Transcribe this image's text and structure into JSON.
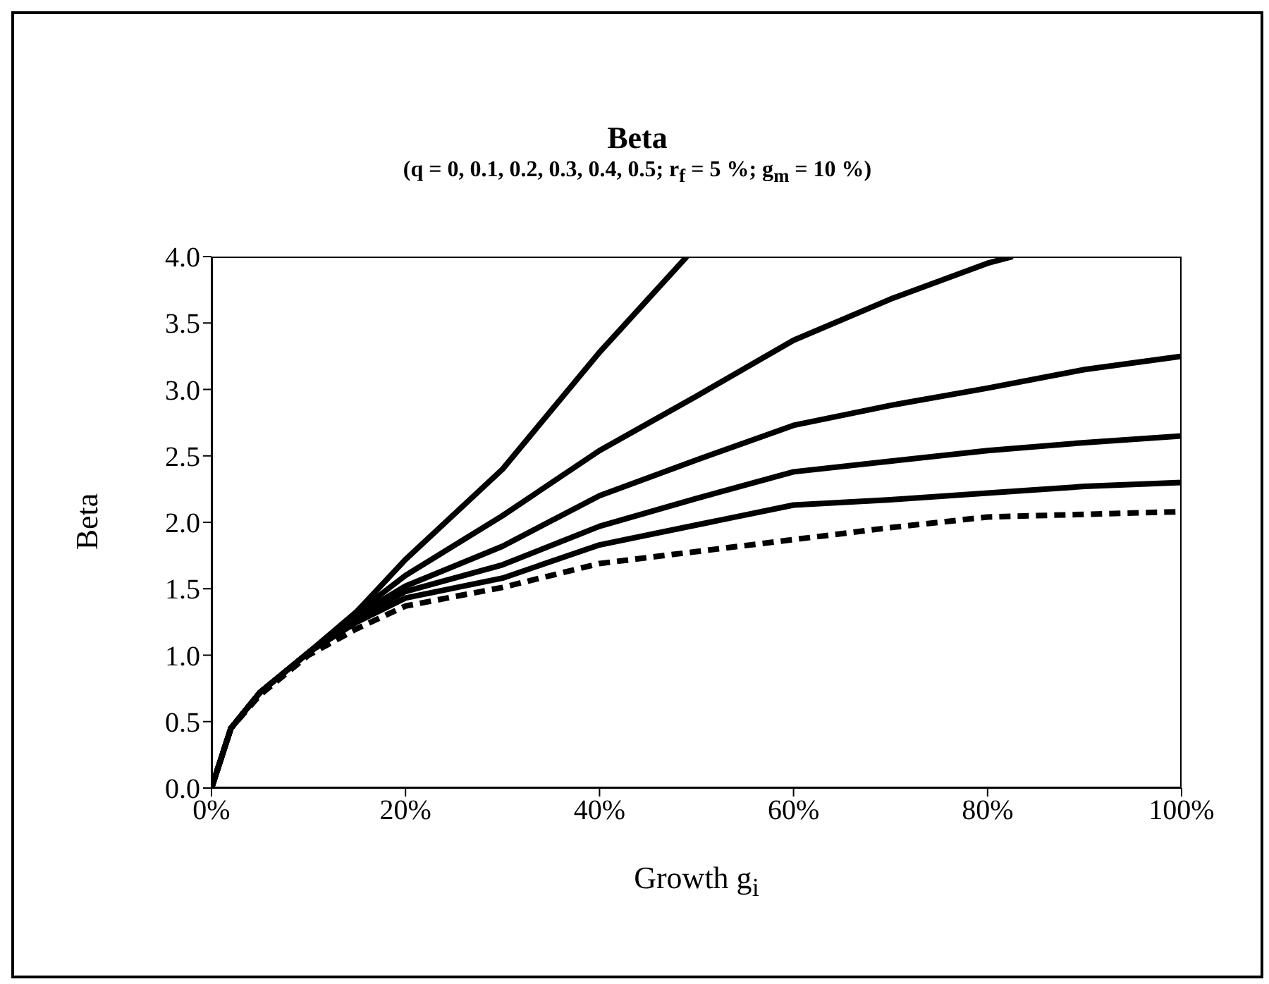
{
  "chart_data": {
    "type": "line",
    "title": "Beta",
    "subtitle": "(q = 0, 0.1, 0.2, 0.3, 0.4, 0.5; r$_{f}$ = 5 %; g$_{m}$ = 10 %)",
    "xlabel": "Growth g$_{i}$",
    "ylabel": "Beta",
    "xlim": [
      0,
      100
    ],
    "xticks": [
      {
        "value": 0,
        "label": "0%"
      },
      {
        "value": 20,
        "label": "20%"
      },
      {
        "value": 40,
        "label": "40%"
      },
      {
        "value": 60,
        "label": "60%"
      },
      {
        "value": 80,
        "label": "80%"
      },
      {
        "value": 100,
        "label": "100%"
      }
    ],
    "ylim": [
      0,
      4
    ],
    "yticks": [
      {
        "value": 0,
        "label": "0.0"
      },
      {
        "value": 0.5,
        "label": "0.5"
      },
      {
        "value": 1,
        "label": "1.0"
      },
      {
        "value": 1.5,
        "label": "1.5"
      },
      {
        "value": 2,
        "label": "2.0"
      },
      {
        "value": 2.5,
        "label": "2.5"
      },
      {
        "value": 3,
        "label": "3.0"
      },
      {
        "value": 3.5,
        "label": "3.5"
      },
      {
        "value": 4,
        "label": "4.0"
      }
    ],
    "marker": "none",
    "series": [
      {
        "color": "#000000",
        "line_style": "dashed",
        "x": [
          0,
          2,
          5,
          10,
          15,
          20,
          30,
          40,
          50,
          60,
          70,
          80,
          90,
          100
        ],
        "values": [
          0,
          0.45,
          0.7,
          1.0,
          1.2,
          1.37,
          1.51,
          1.69,
          1.78,
          1.87,
          1.96,
          2.04,
          2.06,
          2.08
        ]
      },
      {
        "color": "#000000",
        "line_style": "solid",
        "x": [
          0,
          2,
          5,
          10,
          15,
          20,
          30,
          40,
          50,
          60,
          70,
          80,
          90,
          100
        ],
        "values": [
          0,
          0.45,
          0.72,
          1.02,
          1.25,
          1.43,
          1.58,
          1.83,
          1.98,
          2.13,
          2.17,
          2.22,
          2.27,
          2.3
        ]
      },
      {
        "color": "#000000",
        "line_style": "solid",
        "x": [
          0,
          2,
          5,
          10,
          15,
          20,
          30,
          40,
          50,
          60,
          70,
          80,
          90,
          100
        ],
        "values": [
          0,
          0.45,
          0.72,
          1.02,
          1.28,
          1.48,
          1.68,
          1.97,
          2.18,
          2.38,
          2.46,
          2.54,
          2.6,
          2.65
        ]
      },
      {
        "color": "#000000",
        "line_style": "solid",
        "x": [
          0,
          2,
          5,
          10,
          15,
          20,
          30,
          40,
          50,
          60,
          70,
          80,
          90,
          100
        ],
        "values": [
          0,
          0.45,
          0.72,
          1.02,
          1.3,
          1.52,
          1.82,
          2.2,
          2.47,
          2.73,
          2.88,
          3.01,
          3.15,
          3.25
        ]
      },
      {
        "color": "#000000",
        "line_style": "solid",
        "x": [
          0,
          2,
          5,
          10,
          15,
          20,
          30,
          40,
          50,
          60,
          70,
          80,
          82.6
        ],
        "values": [
          0,
          0.45,
          0.72,
          1.02,
          1.32,
          1.6,
          2.05,
          2.54,
          2.95,
          3.37,
          3.68,
          3.95,
          4.0
        ]
      },
      {
        "color": "#000000",
        "line_style": "solid",
        "x": [
          0,
          2,
          5,
          10,
          15,
          20,
          30,
          40,
          49
        ],
        "values": [
          0,
          0.45,
          0.72,
          1.02,
          1.33,
          1.72,
          2.4,
          3.28,
          4.0
        ]
      }
    ]
  }
}
